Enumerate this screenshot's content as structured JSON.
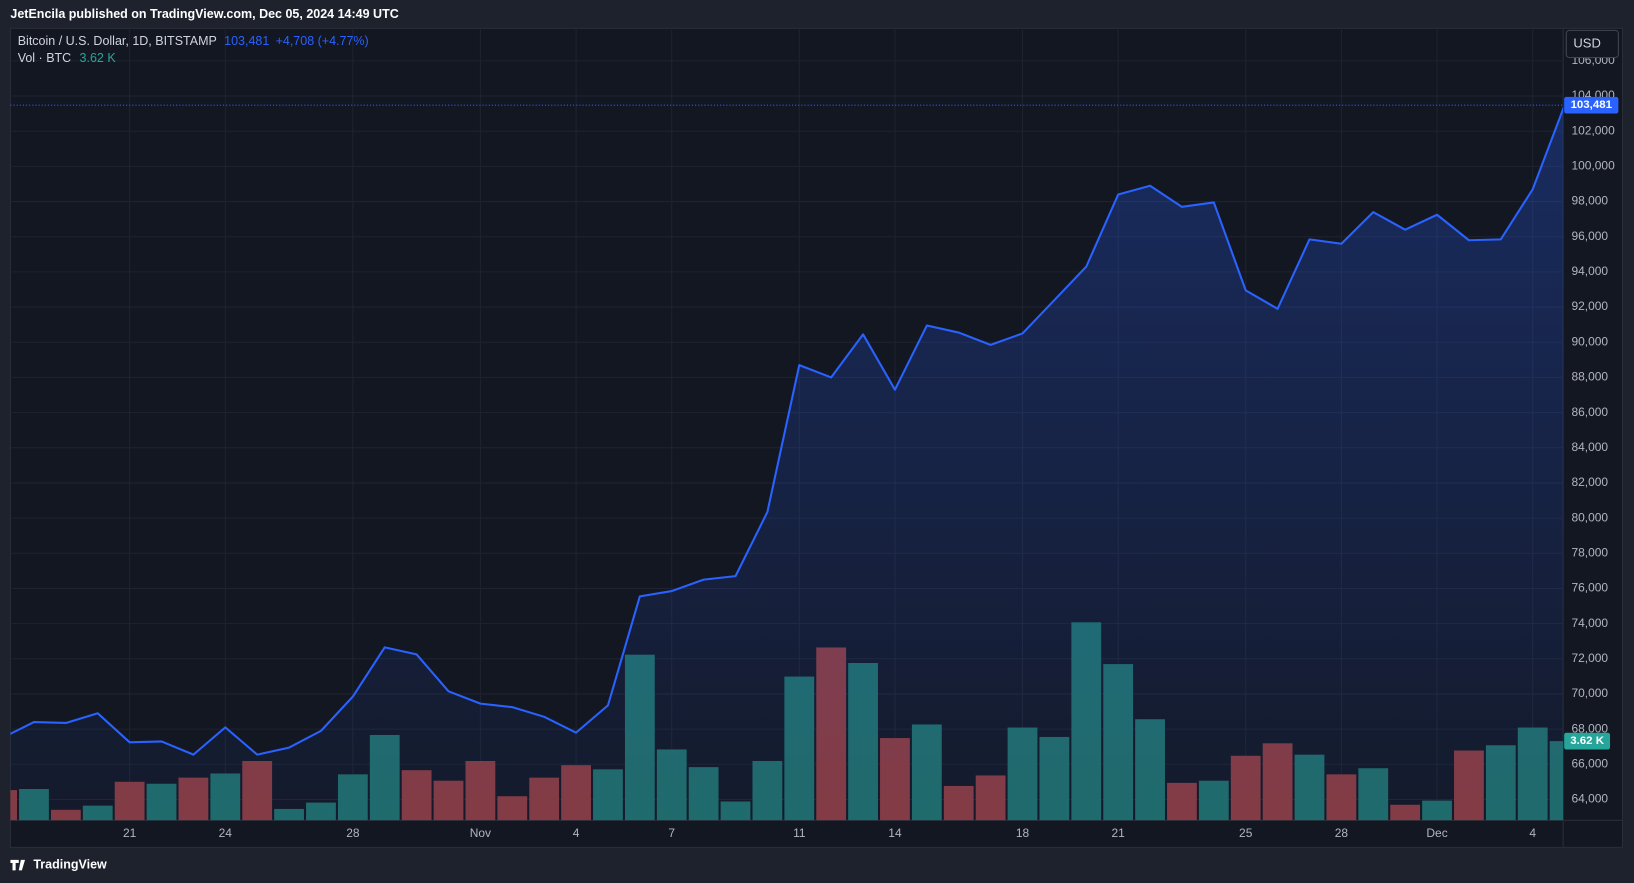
{
  "header": {
    "publisher": "JetEncila published on TradingView.com, Dec 05, 2024 14:49 UTC",
    "logo": "TradingView"
  },
  "chart_data": {
    "type": "line",
    "currency": "USD",
    "categories": [
      null,
      null,
      null,
      null,
      "21",
      null,
      null,
      "24",
      null,
      null,
      null,
      "28",
      null,
      null,
      null,
      "Nov",
      null,
      null,
      "4",
      null,
      null,
      "7",
      null,
      null,
      null,
      "11",
      null,
      null,
      "14",
      null,
      null,
      null,
      "18",
      null,
      null,
      "21",
      null,
      null,
      null,
      "25",
      null,
      null,
      "28",
      null,
      null,
      "Dec",
      null,
      null,
      "4",
      null
    ],
    "ylim": [
      62815,
      107852
    ],
    "yticks": [
      {
        "value": 64000,
        "label": "64,000"
      },
      {
        "value": 66000,
        "label": "66,000"
      },
      {
        "value": 68000,
        "label": "68,000"
      },
      {
        "value": 70000,
        "label": "70,000"
      },
      {
        "value": 72000,
        "label": "72,000"
      },
      {
        "value": 74000,
        "label": "74,000"
      },
      {
        "value": 76000,
        "label": "76,000"
      },
      {
        "value": 78000,
        "label": "78,000"
      },
      {
        "value": 80000,
        "label": "80,000"
      },
      {
        "value": 82000,
        "label": "82,000"
      },
      {
        "value": 84000,
        "label": "84,000"
      },
      {
        "value": 86000,
        "label": "86,000"
      },
      {
        "value": 88000,
        "label": "88,000"
      },
      {
        "value": 90000,
        "label": "90,000"
      },
      {
        "value": 92000,
        "label": "92,000"
      },
      {
        "value": 94000,
        "label": "94,000"
      },
      {
        "value": 96000,
        "label": "96,000"
      },
      {
        "value": 98000,
        "label": "98,000"
      },
      {
        "value": 100000,
        "label": "100,000"
      },
      {
        "value": 102000,
        "label": "102,000"
      },
      {
        "value": 104000,
        "label": "104,000"
      },
      {
        "value": 106000,
        "label": "106,000"
      }
    ],
    "y2lim": [
      0,
      36.2
    ],
    "grid": true,
    "series": [
      {
        "name": "Bitcoin / U.S. Dollar, 1D, BITSTAMP",
        "type": "line",
        "color": "#2962ff",
        "change_label": "+4,708 (+4.77%)",
        "values": [
          67500,
          68400,
          68350,
          68900,
          67250,
          67300,
          66550,
          68100,
          66550,
          66950,
          67900,
          69850,
          72650,
          72250,
          70150,
          69450,
          69250,
          68700,
          67800,
          69350,
          75550,
          75850,
          76500,
          76700,
          80350,
          88700,
          88000,
          90450,
          87300,
          90950,
          90550,
          89850,
          90500,
          92400,
          94300,
          98400,
          98900,
          97700,
          97950,
          92950,
          91900,
          95850,
          95600,
          97400,
          96400,
          97250,
          95800,
          95850,
          98700,
          103481
        ],
        "value_labels": [
          null,
          null,
          null,
          null,
          null,
          null,
          null,
          null,
          null,
          null,
          null,
          null,
          null,
          null,
          null,
          null,
          null,
          null,
          null,
          null,
          null,
          null,
          null,
          null,
          null,
          null,
          null,
          null,
          null,
          null,
          null,
          null,
          null,
          null,
          null,
          null,
          null,
          null,
          null,
          null,
          null,
          null,
          null,
          null,
          null,
          null,
          null,
          null,
          null,
          "103,481"
        ]
      },
      {
        "name": "Vol · BTC",
        "type": "bar",
        "axis": "y2",
        "label_color": "#26a69a",
        "values": [
          1.38,
          1.43,
          0.48,
          0.67,
          1.76,
          1.67,
          1.95,
          2.14,
          2.71,
          0.52,
          0.81,
          2.1,
          3.9,
          2.29,
          1.81,
          2.71,
          1.1,
          1.95,
          2.52,
          2.33,
          7.57,
          3.24,
          2.43,
          0.86,
          2.71,
          6.57,
          7.9,
          7.19,
          3.76,
          4.38,
          1.57,
          2.05,
          4.24,
          3.81,
          9.05,
          7.14,
          4.62,
          1.71,
          1.81,
          2.95,
          3.52,
          3.0,
          2.1,
          2.38,
          0.71,
          0.9,
          3.19,
          3.43,
          4.24,
          3.62
        ],
        "value_labels": [
          null,
          null,
          null,
          null,
          null,
          null,
          null,
          null,
          null,
          null,
          null,
          null,
          null,
          null,
          null,
          null,
          null,
          null,
          null,
          null,
          null,
          null,
          null,
          null,
          null,
          null,
          null,
          null,
          null,
          null,
          null,
          null,
          null,
          null,
          null,
          null,
          null,
          null,
          null,
          null,
          null,
          null,
          null,
          null,
          null,
          null,
          null,
          null,
          null,
          "3.62 K"
        ],
        "colors": [
          "#873a3d",
          "#1f6b66",
          "#873a3d",
          "#1f6b66",
          "#873a3d",
          "#1f6b66",
          "#873a3d",
          "#1f6b66",
          "#873a3d",
          "#1f6b66",
          "#1f6b66",
          "#1f6b66",
          "#1f6b66",
          "#873a3d",
          "#873a3d",
          "#873a3d",
          "#873a3d",
          "#873a3d",
          "#873a3d",
          "#1f6b66",
          "#1f6b66",
          "#1f6b66",
          "#1f6b66",
          "#1f6b66",
          "#1f6b66",
          "#1f6b66",
          "#873a3d",
          "#1f6b66",
          "#873a3d",
          "#1f6b66",
          "#873a3d",
          "#873a3d",
          "#1f6b66",
          "#1f6b66",
          "#1f6b66",
          "#1f6b66",
          "#1f6b66",
          "#873a3d",
          "#1f6b66",
          "#873a3d",
          "#873a3d",
          "#1f6b66",
          "#873a3d",
          "#1f6b66",
          "#873a3d",
          "#1f6b66",
          "#873a3d",
          "#1f6b66",
          "#1f6b66",
          "#1f6b66"
        ]
      }
    ]
  }
}
